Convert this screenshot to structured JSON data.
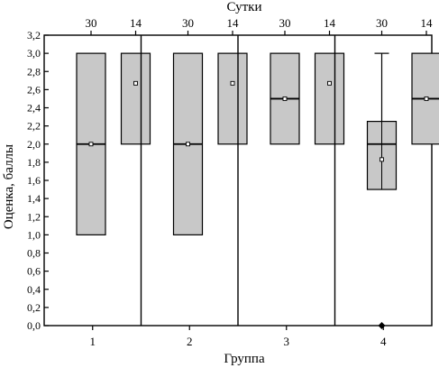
{
  "chart_data": {
    "type": "box",
    "title": "",
    "top_axis_title": "Сутки",
    "xlabel": "Группа",
    "ylabel": "Оценка, баллы",
    "ylim": [
      0,
      3.2
    ],
    "y_ticks": [
      "0,0",
      "0,2",
      "0,4",
      "0,6",
      "0,8",
      "1,0",
      "1,2",
      "1,4",
      "1,6",
      "1,8",
      "2,0",
      "2,2",
      "2,4",
      "2,6",
      "2,8",
      "3,0",
      "3,2"
    ],
    "groups": [
      {
        "label": "1",
        "boxes": [
          {
            "day": "30",
            "q1": 1.0,
            "median": 2.0,
            "q3": 3.0,
            "mean": 2.0
          },
          {
            "day": "14",
            "q1": 2.0,
            "median": null,
            "q3": 3.0,
            "mean": 2.67
          }
        ]
      },
      {
        "label": "2",
        "boxes": [
          {
            "day": "30",
            "q1": 1.0,
            "median": 2.0,
            "q3": 3.0,
            "mean": 2.0
          },
          {
            "day": "14",
            "q1": 2.0,
            "median": null,
            "q3": 3.0,
            "mean": 2.67
          }
        ]
      },
      {
        "label": "3",
        "boxes": [
          {
            "day": "30",
            "q1": 2.0,
            "median": 2.5,
            "q3": 3.0,
            "mean": 2.5
          },
          {
            "day": "14",
            "q1": 2.0,
            "median": null,
            "q3": 3.0,
            "mean": 2.67
          }
        ]
      },
      {
        "label": "4",
        "boxes": [
          {
            "day": "30",
            "q1": 1.5,
            "median": 2.0,
            "q3": 2.25,
            "mean": 1.83,
            "whisker_low": 1.5,
            "whisker_high": 3.0,
            "outliers": [
              0.0
            ]
          },
          {
            "day": "14",
            "q1": 2.0,
            "median": 2.5,
            "q3": 3.0,
            "mean": 2.5
          }
        ]
      }
    ],
    "colors": {
      "box_fill": "#c8c8c8",
      "line": "#000000"
    }
  }
}
